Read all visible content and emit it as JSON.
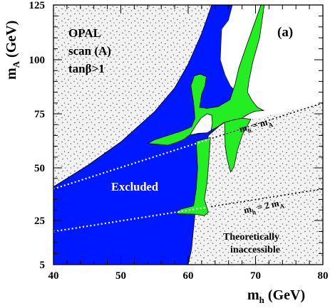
{
  "chart_data": {
    "type": "area",
    "x_axis": {
      "label_main": "m",
      "label_sub": "h",
      "label_unit": " (GeV)",
      "range": [
        40,
        80
      ],
      "ticks": [
        40,
        50,
        60,
        70,
        80
      ],
      "tick_labels": [
        "40",
        "50",
        "60",
        "70",
        "80"
      ]
    },
    "y_axis": {
      "label_main": "m",
      "label_sub": "A",
      "label_unit": " (GeV)",
      "range": [
        5,
        125
      ],
      "ticks": [
        5,
        25,
        50,
        75,
        100,
        125
      ],
      "tick_labels": [
        "5",
        "25",
        "50",
        "75",
        "100",
        "125"
      ]
    },
    "panel_label": "(a)",
    "info_lines": [
      "OPAL",
      "scan (A)",
      "tanβ>1"
    ],
    "region_labels": {
      "excluded": "Excluded",
      "inaccessible_line1": "Theoretically",
      "inaccessible_line2": "inaccessible"
    },
    "line_labels": {
      "mh_eq_mA": {
        "a": "m",
        "a_sub": "h",
        "eq": " = m",
        "b_sub": "A"
      },
      "mh_eq_2mA": {
        "a": "m",
        "a_sub": "h",
        "eq": " = 2 m",
        "b_sub": "A"
      }
    },
    "colors": {
      "excluded": "#0018ff",
      "expected_band": "#22ee22",
      "allowed": "#ffffff",
      "theoretically_inaccessible": "#f2f2f2",
      "dotted_line": "#ffffff"
    },
    "regions": {
      "excluded_boundary": [
        [
          40,
          41
        ],
        [
          45,
          51
        ],
        [
          50,
          62
        ],
        [
          55,
          76
        ],
        [
          58,
          87
        ],
        [
          60,
          98
        ],
        [
          62,
          112
        ],
        [
          63.5,
          125
        ],
        [
          66.6,
          125
        ],
        [
          66,
          118
        ],
        [
          65,
          114
        ],
        [
          64.8,
          100
        ],
        [
          65.5,
          93
        ],
        [
          66.3,
          88
        ],
        [
          67.5,
          84
        ],
        [
          69,
          81
        ],
        [
          70,
          78
        ],
        [
          71,
          76.5
        ],
        [
          70,
          76.3
        ],
        [
          69,
          75
        ],
        [
          68,
          73
        ],
        [
          66.5,
          72
        ],
        [
          65.5,
          71.2
        ],
        [
          64.5,
          69
        ],
        [
          63,
          65
        ],
        [
          62.5,
          58
        ],
        [
          62,
          52
        ],
        [
          61.5,
          36
        ],
        [
          61,
          28
        ],
        [
          60.5,
          12
        ],
        [
          60,
          5
        ],
        [
          40,
          5
        ]
      ],
      "allowed_region": [
        [
          66.6,
          125
        ],
        [
          80,
          125
        ],
        [
          80,
          80
        ],
        [
          71,
          76.5
        ],
        [
          70,
          78
        ],
        [
          69,
          81
        ],
        [
          67.5,
          84
        ],
        [
          66.3,
          88
        ],
        [
          65.5,
          93
        ],
        [
          64.8,
          100
        ],
        [
          65,
          114
        ],
        [
          66,
          118
        ]
      ],
      "allowed_pocket": [
        [
          60.3,
          65.3
        ],
        [
          61,
          69
        ],
        [
          61.9,
          73
        ],
        [
          62.8,
          75
        ],
        [
          63.5,
          74.3
        ],
        [
          63.6,
          70.5
        ],
        [
          63.4,
          67.3
        ],
        [
          62.8,
          66.2
        ],
        [
          61.5,
          66
        ],
        [
          60.8,
          65.5
        ]
      ],
      "theoretical_upper_left": [
        [
          40,
          41
        ],
        [
          45,
          51
        ],
        [
          50,
          62
        ],
        [
          55,
          76
        ],
        [
          58,
          87
        ],
        [
          60,
          98
        ],
        [
          62,
          112
        ],
        [
          63.5,
          125
        ],
        [
          40,
          125
        ]
      ],
      "theoretical_lower_right": [
        [
          60,
          5
        ],
        [
          60.5,
          12
        ],
        [
          61,
          28
        ],
        [
          61.5,
          36
        ],
        [
          62,
          52
        ],
        [
          62.5,
          58
        ],
        [
          63,
          65
        ],
        [
          64.5,
          69
        ],
        [
          80,
          80
        ],
        [
          80,
          5
        ]
      ],
      "green_bands": [
        [
          [
            54,
            61.3
          ],
          [
            55,
            63
          ],
          [
            57,
            65
          ],
          [
            59,
            67
          ],
          [
            60.5,
            69
          ],
          [
            61,
            73
          ],
          [
            60.8,
            80
          ],
          [
            60.4,
            88
          ],
          [
            60.9,
            92.5
          ],
          [
            61.8,
            93.4
          ],
          [
            62.7,
            92.2
          ],
          [
            62.5,
            88
          ],
          [
            62,
            84
          ],
          [
            61.7,
            78
          ],
          [
            62.8,
            77.5
          ],
          [
            64.5,
            78.4
          ],
          [
            66.2,
            81.5
          ],
          [
            67,
            89
          ],
          [
            67.5,
            96
          ],
          [
            68.5,
            105
          ],
          [
            70,
            118
          ],
          [
            70.8,
            125
          ],
          [
            71.3,
            125
          ],
          [
            70.6,
            110
          ],
          [
            69.6,
            99
          ],
          [
            69,
            90
          ],
          [
            68.8,
            85
          ],
          [
            69.5,
            81
          ],
          [
            70.3,
            78
          ],
          [
            71.2,
            76.5
          ],
          [
            69.9,
            76.2
          ],
          [
            68.9,
            74.9
          ],
          [
            67.9,
            72.9
          ],
          [
            66.4,
            71.9
          ],
          [
            65.3,
            71
          ],
          [
            64.2,
            68.7
          ],
          [
            62.9,
            66.6
          ],
          [
            62,
            66.1
          ],
          [
            61,
            65.5
          ],
          [
            60.2,
            65.2
          ],
          [
            59.5,
            63.5
          ],
          [
            58.5,
            62
          ],
          [
            57,
            60.5
          ]
        ],
        [
          [
            61.2,
            62.3
          ],
          [
            61.4,
            50
          ],
          [
            61.2,
            40
          ],
          [
            60.8,
            32
          ],
          [
            59,
            30.5
          ],
          [
            58.2,
            29
          ],
          [
            58.5,
            28.2
          ],
          [
            61,
            28
          ],
          [
            62.4,
            27.3
          ],
          [
            63,
            29
          ],
          [
            62.4,
            35
          ],
          [
            62.8,
            43
          ],
          [
            63.1,
            55
          ],
          [
            63.3,
            64
          ]
        ],
        [
          [
            65.4,
            71
          ],
          [
            65.5,
            60
          ],
          [
            65.8,
            54
          ],
          [
            66.3,
            48
          ],
          [
            66.8,
            50.5
          ],
          [
            67.3,
            58
          ],
          [
            68,
            65
          ],
          [
            69.3,
            72.5
          ],
          [
            68,
            73
          ],
          [
            66.5,
            72
          ]
        ]
      ]
    },
    "boundary_lines": {
      "mh_eq_mA": {
        "x": [
          40,
          80
        ],
        "y": [
          40,
          80
        ]
      },
      "mh_eq_2mA": {
        "x": [
          40,
          80
        ],
        "y": [
          20,
          40
        ]
      }
    }
  }
}
